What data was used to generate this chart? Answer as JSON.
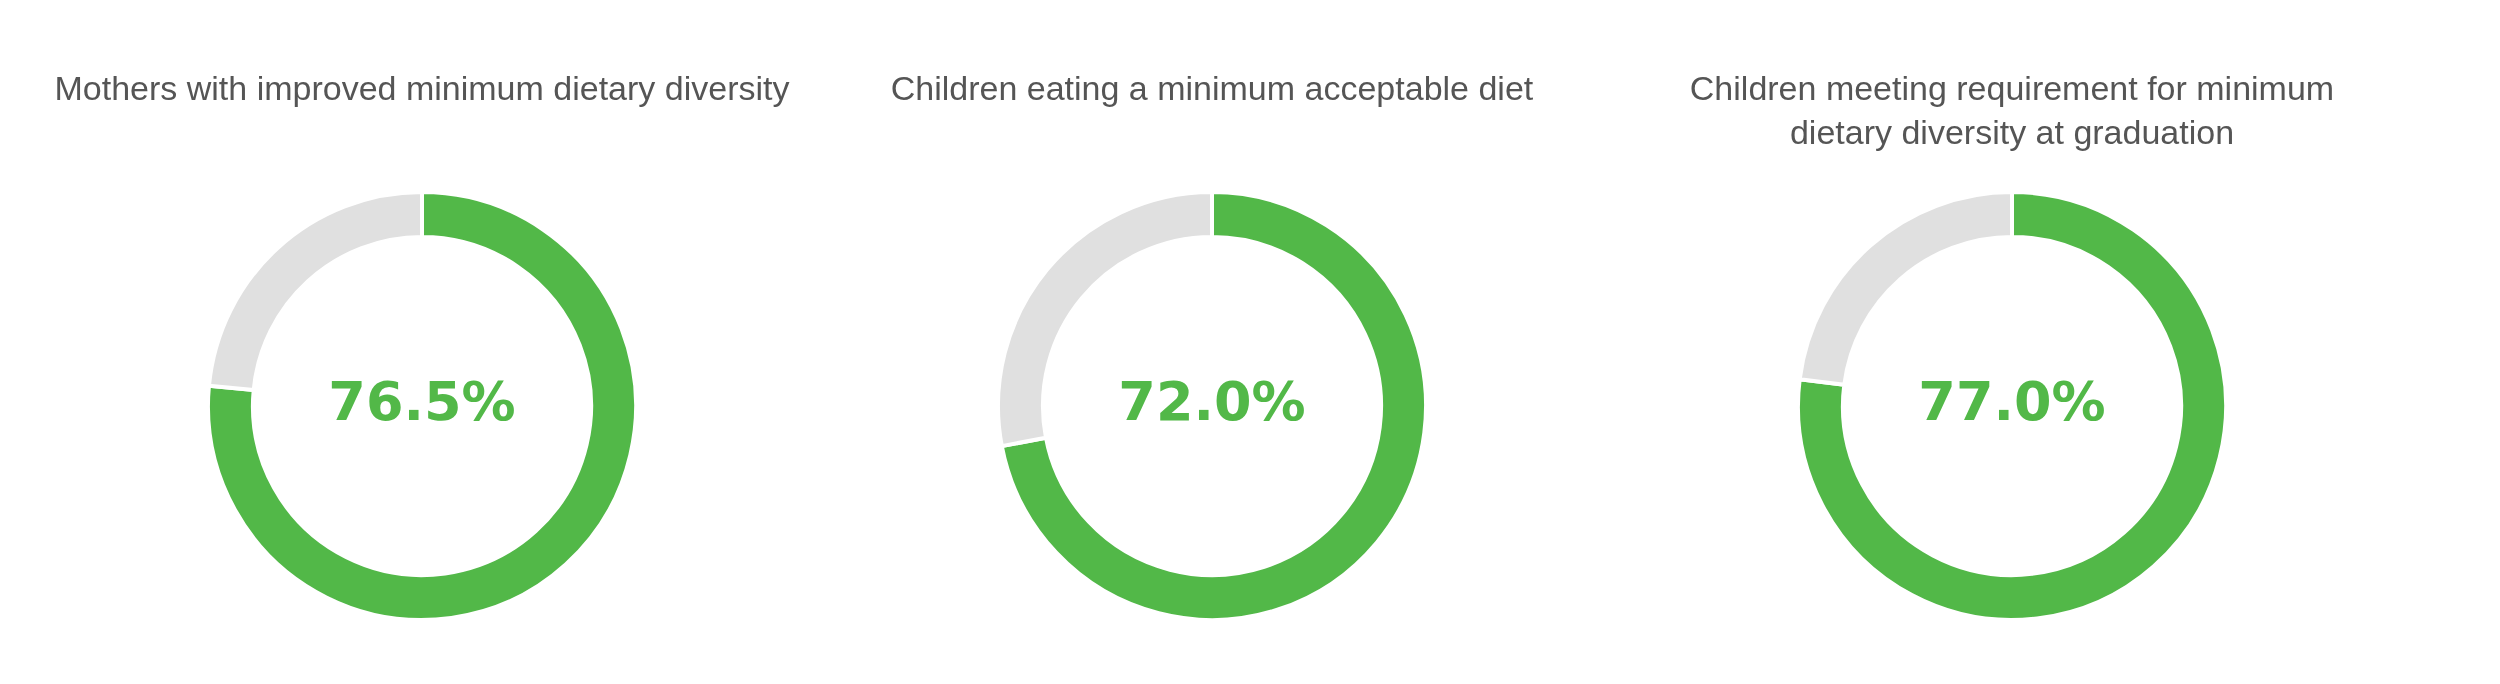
{
  "chart_data": [
    {
      "type": "donut",
      "title": "Mothers with improved minimum dietary diversity",
      "categories": [
        null,
        null
      ],
      "values": [
        76.5,
        23.5
      ],
      "colors": [
        "#52b848",
        "#e0e0e0"
      ],
      "value_labels": [
        "76.5%",
        null
      ]
    },
    {
      "type": "donut",
      "title": "Children eating a minimum acceptable diet",
      "categories": [
        null,
        null
      ],
      "values": [
        72.0,
        28.0
      ],
      "colors": [
        "#52b848",
        "#e0e0e0"
      ],
      "value_labels": [
        "72.0%",
        null
      ]
    },
    {
      "type": "donut",
      "title": "Children meeting requirement for minimum dietary diversity at graduation",
      "categories": [
        null,
        null
      ],
      "values": [
        77.0,
        23.0
      ],
      "colors": [
        "#52b848",
        "#e0e0e0"
      ],
      "value_labels": [
        "77.0%",
        null
      ]
    }
  ]
}
